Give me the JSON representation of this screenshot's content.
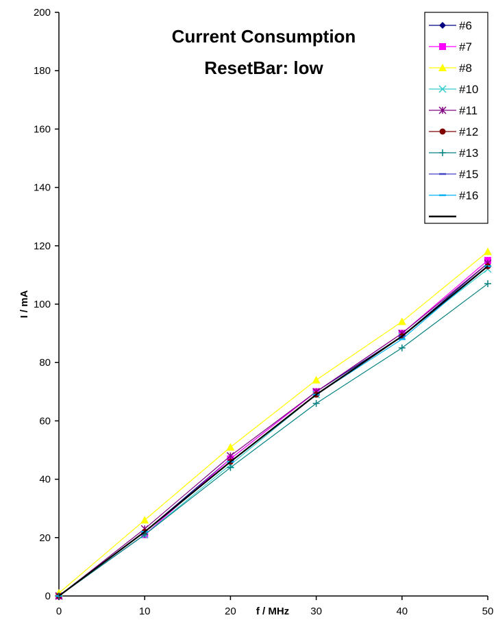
{
  "chart_data": {
    "type": "line",
    "title": "Current Consumption",
    "subtitle": "ResetBar: low",
    "xlabel": "f / MHz",
    "ylabel": "I / mA",
    "x": [
      0,
      10,
      20,
      30,
      40,
      50
    ],
    "xlim": [
      0,
      50
    ],
    "ylim": [
      0,
      200
    ],
    "xticks": [
      0,
      10,
      20,
      30,
      40,
      50
    ],
    "yticks": [
      0,
      20,
      40,
      60,
      80,
      100,
      120,
      140,
      160,
      180,
      200
    ],
    "grid": false,
    "legend_position": "top-right",
    "series": [
      {
        "name": "#6",
        "color": "#000080",
        "marker": "diamond",
        "values": [
          0,
          22,
          47,
          70,
          89,
          114
        ]
      },
      {
        "name": "#7",
        "color": "#ff00ff",
        "marker": "square",
        "values": [
          0,
          21,
          47,
          70,
          90,
          115
        ]
      },
      {
        "name": "#8",
        "color": "#ffff00",
        "marker": "triangle",
        "values": [
          1,
          26,
          51,
          74,
          94,
          118
        ]
      },
      {
        "name": "#10",
        "color": "#33cccc",
        "marker": "x",
        "values": [
          0,
          21,
          45,
          69,
          89,
          112
        ]
      },
      {
        "name": "#11",
        "color": "#800080",
        "marker": "star",
        "values": [
          0,
          23,
          48,
          70,
          90,
          114
        ]
      },
      {
        "name": "#12",
        "color": "#800000",
        "marker": "circle",
        "values": [
          0,
          22,
          46,
          69,
          89,
          113
        ]
      },
      {
        "name": "#13",
        "color": "#008080",
        "marker": "plus",
        "values": [
          0,
          21,
          44,
          66,
          85,
          107
        ]
      },
      {
        "name": "#15",
        "color": "#4040c0",
        "marker": "dash",
        "values": [
          0,
          22,
          46,
          69,
          89,
          113
        ]
      },
      {
        "name": "#16",
        "color": "#00b0f0",
        "marker": "dash",
        "values": [
          0,
          22,
          46,
          69,
          88,
          113
        ]
      },
      {
        "color": "#000000",
        "marker": "none",
        "values": [
          0,
          22,
          46,
          69,
          89,
          113
        ]
      }
    ]
  }
}
